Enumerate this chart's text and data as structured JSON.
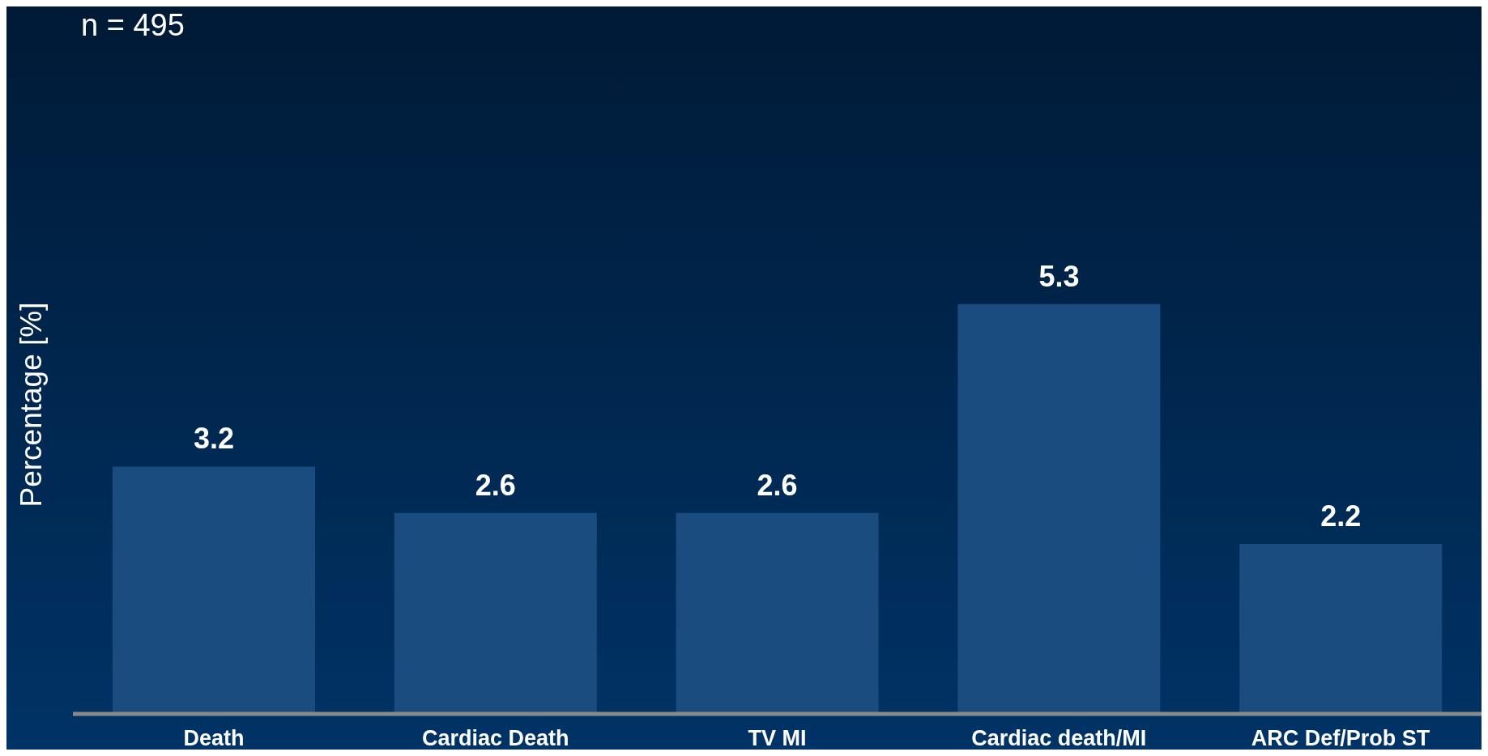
{
  "chart_data": {
    "type": "bar",
    "ylabel": "Percentage [%]",
    "annotations": [
      "n = 495"
    ],
    "categories": [
      "Death",
      "Cardiac Death",
      "TV MI",
      "Cardiac death/MI",
      "ARC Def/Prob ST"
    ],
    "values": [
      3.2,
      2.6,
      2.6,
      5.3,
      2.2
    ],
    "color": "#1a4c80",
    "tick_labels": "x",
    "data_labels": true
  }
}
